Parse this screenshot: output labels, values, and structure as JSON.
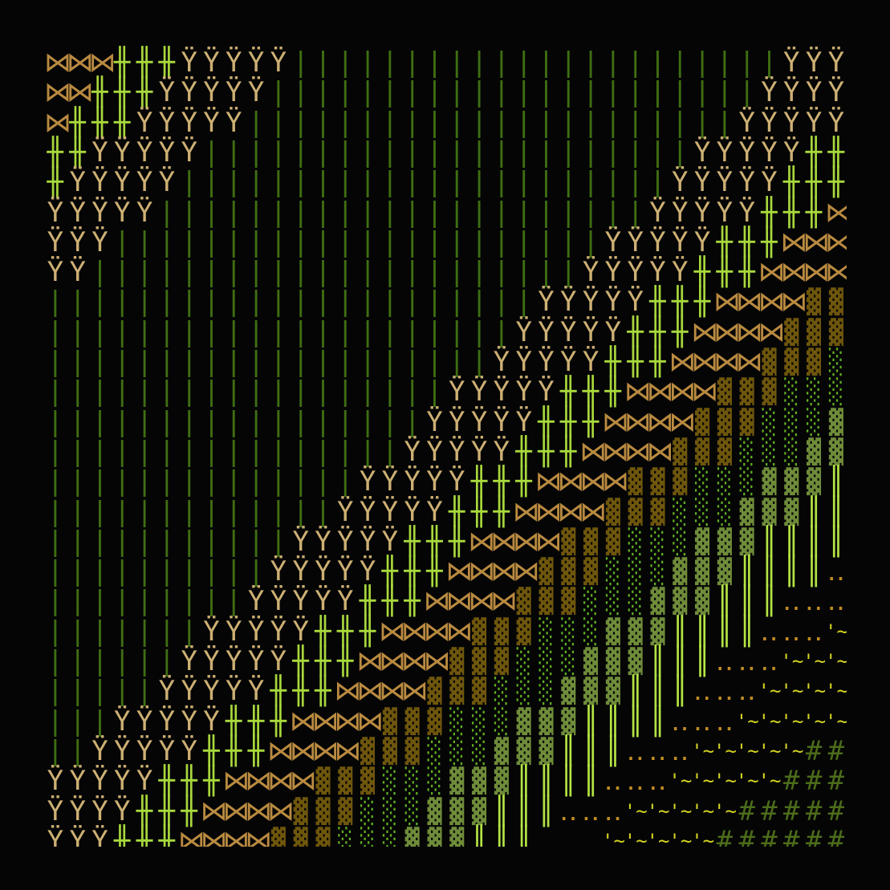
{
  "grid": {
    "rows": 27,
    "cols": 36
  },
  "background": "#050505",
  "glyphs": {
    "bowtie": {
      "char": "⋈",
      "color": "#b98a40"
    },
    "cross": {
      "char": "╫",
      "color": "#a8d83c"
    },
    "figure": {
      "char": "Ÿ",
      "color": "#cdb074"
    },
    "line": {
      "char": "|",
      "color": "#3f6e12"
    },
    "shade_brown": {
      "char": "▓",
      "color": "#6e560c"
    },
    "shade_dots": {
      "char": "░",
      "color": "#5fae22"
    },
    "shade_olive": {
      "char": "▓",
      "color": "#6f8c3a"
    },
    "double_bar": {
      "char": "║",
      "color": "#b4e444"
    },
    "dots": {
      "char": "‥",
      "color": "#c08c22"
    },
    "tilde": {
      "char": "'~",
      "color": "#d4d422"
    },
    "hash": {
      "char": "#",
      "color": "#4c6c1a"
    }
  }
}
